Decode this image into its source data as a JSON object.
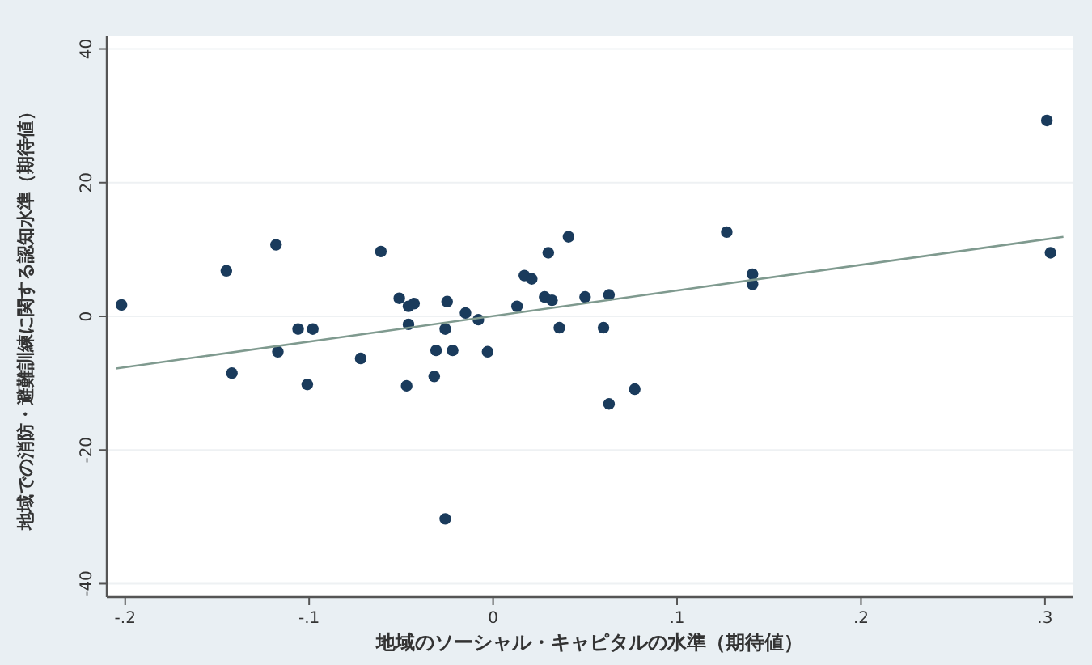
{
  "chart_data": {
    "type": "scatter",
    "xlabel": "地域のソーシャル・キャピタルの水準（期待値）",
    "ylabel": "地域での消防・避難訓練に関する認知水準（期待値）",
    "xlim": [
      -0.21,
      0.315
    ],
    "ylim": [
      -42,
      42
    ],
    "xticks": [
      {
        "value": -0.2,
        "label": "-.2"
      },
      {
        "value": -0.1,
        "label": "-.1"
      },
      0,
      {
        "value": 0.1,
        "label": ".1"
      },
      {
        "value": 0.2,
        "label": ".2"
      },
      {
        "value": 0.3,
        "label": ".3"
      }
    ],
    "yticks": [
      -40,
      -20,
      0,
      20,
      40
    ],
    "grid": "y",
    "series": [
      {
        "marker": "circle",
        "color": "#1a3b5c",
        "x": [
          -0.202,
          -0.145,
          -0.142,
          -0.118,
          -0.117,
          -0.106,
          -0.098,
          -0.101,
          -0.072,
          -0.061,
          -0.051,
          -0.046,
          -0.043,
          -0.046,
          -0.047,
          -0.032,
          -0.031,
          -0.026,
          -0.025,
          -0.022,
          -0.026,
          -0.015,
          -0.008,
          -0.003,
          0.013,
          0.017,
          0.021,
          0.028,
          0.03,
          0.032,
          0.036,
          0.041,
          0.05,
          0.06,
          0.063,
          0.063,
          0.077,
          0.127,
          0.141,
          0.141,
          0.301,
          0.303
        ],
        "values": [
          1.7,
          6.8,
          -8.5,
          10.7,
          -5.3,
          -1.9,
          -1.9,
          -10.2,
          -6.3,
          9.7,
          2.7,
          1.5,
          1.9,
          -1.2,
          -10.4,
          -9.0,
          -5.1,
          -1.9,
          2.2,
          -5.1,
          -30.3,
          0.5,
          -0.5,
          -5.3,
          1.5,
          6.1,
          5.6,
          2.9,
          9.5,
          2.4,
          -1.7,
          11.9,
          2.9,
          -1.7,
          -13.1,
          3.2,
          -10.9,
          12.6,
          4.8,
          6.3,
          29.3,
          9.5
        ]
      },
      {
        "type": "line",
        "marker": "none",
        "line_style": "solid",
        "color": "#7f9a8f",
        "x": [
          -0.205,
          0.31
        ],
        "values": [
          -7.8,
          11.9
        ]
      }
    ]
  }
}
